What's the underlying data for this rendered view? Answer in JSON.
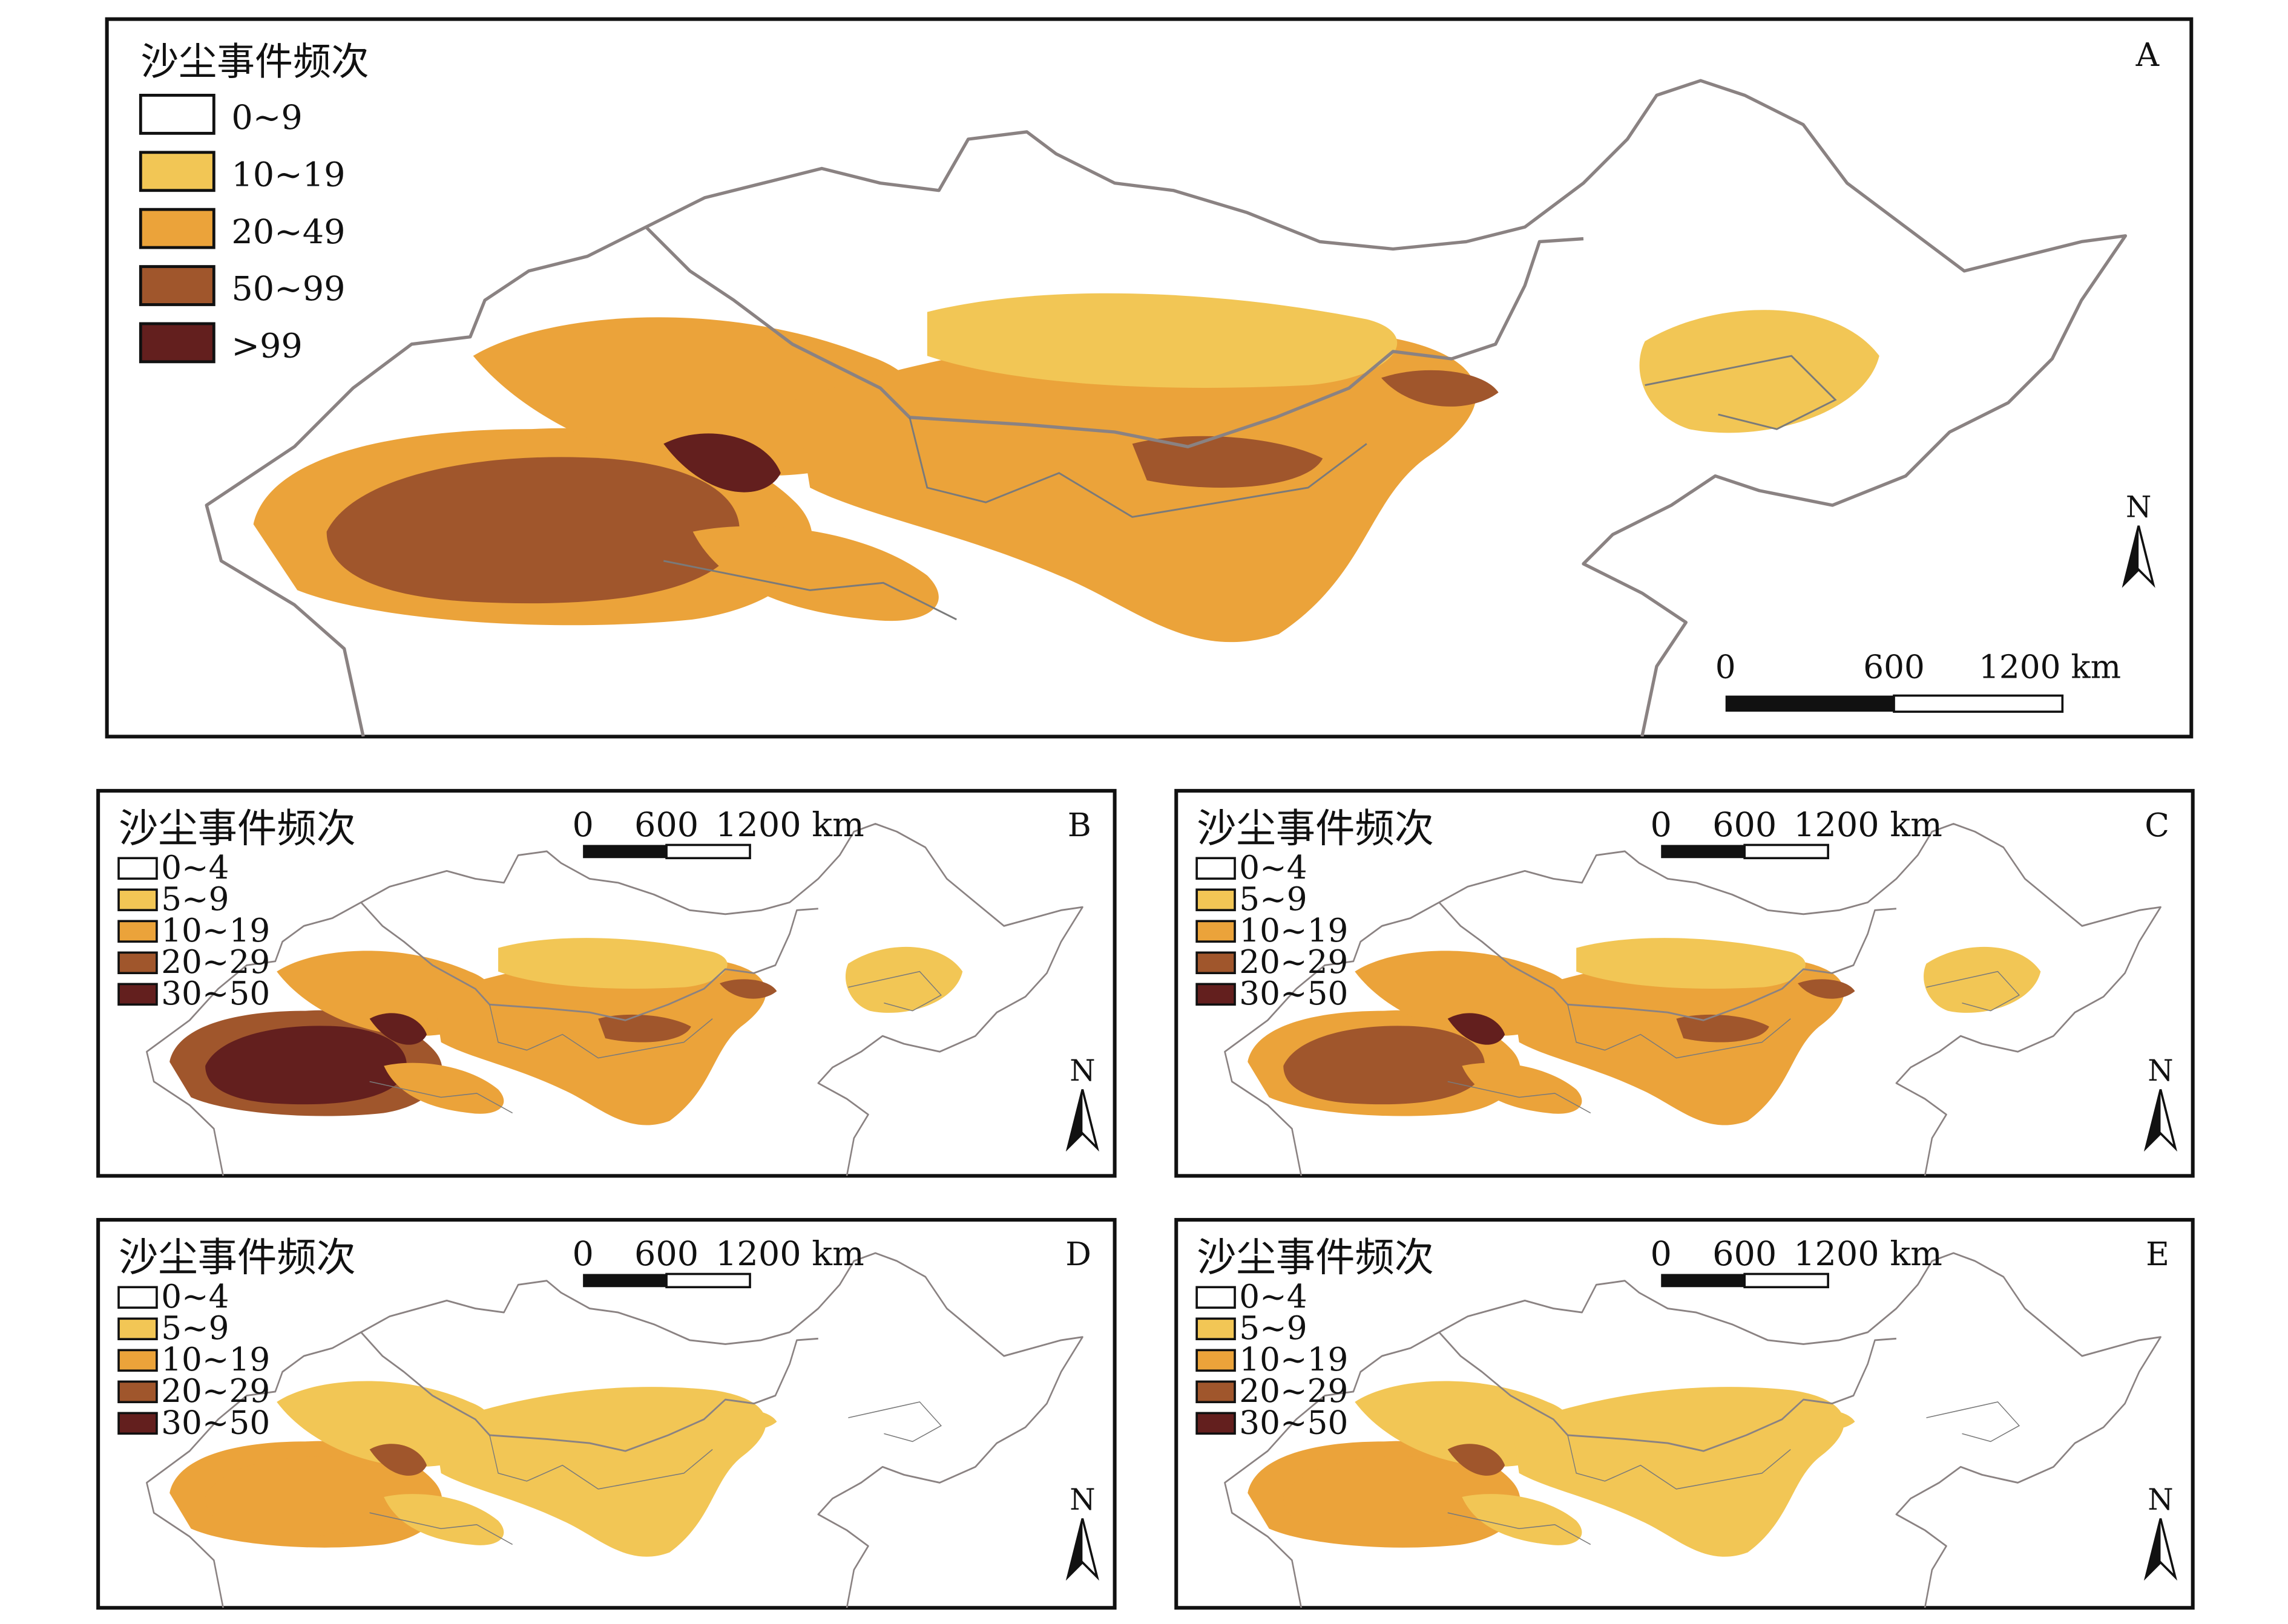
{
  "colors": {
    "border": "#8a8282",
    "A": [
      "#ffffff",
      "#f2c655",
      "#eba33a",
      "#a0562c",
      "#631f1e"
    ],
    "small": [
      "#ffffff",
      "#f2c655",
      "#eba33a",
      "#a0562c",
      "#631f1e"
    ]
  },
  "panels": [
    {
      "id": "A",
      "label": "A",
      "legend_title": "沙尘事件频次",
      "legend": [
        "0~9",
        "10~19",
        "20~49",
        "50~99",
        ">99"
      ],
      "scale": {
        "ticks": [
          "0",
          "600",
          "1200 km"
        ]
      },
      "north": "N",
      "intensity": "high"
    },
    {
      "id": "B",
      "label": "B",
      "legend_title": "沙尘事件频次",
      "legend": [
        "0~4",
        "5~9",
        "10~19",
        "20~29",
        "30~50"
      ],
      "scale": {
        "ticks": [
          "0",
          "600",
          "1200 km"
        ]
      },
      "north": "N",
      "intensity": "very-high"
    },
    {
      "id": "C",
      "label": "C",
      "legend_title": "沙尘事件频次",
      "legend": [
        "0~4",
        "5~9",
        "10~19",
        "20~29",
        "30~50"
      ],
      "scale": {
        "ticks": [
          "0",
          "600",
          "1200 km"
        ]
      },
      "north": "N",
      "intensity": "high"
    },
    {
      "id": "D",
      "label": "D",
      "legend_title": "沙尘事件频次",
      "legend": [
        "0~4",
        "5~9",
        "10~19",
        "20~29",
        "30~50"
      ],
      "scale": {
        "ticks": [
          "0",
          "600",
          "1200 km"
        ]
      },
      "north": "N",
      "intensity": "low"
    },
    {
      "id": "E",
      "label": "E",
      "legend_title": "沙尘事件频次",
      "legend": [
        "0~4",
        "5~9",
        "10~19",
        "20~29",
        "30~50"
      ],
      "scale": {
        "ticks": [
          "0",
          "600",
          "1200 km"
        ]
      },
      "north": "N",
      "intensity": "low"
    }
  ]
}
